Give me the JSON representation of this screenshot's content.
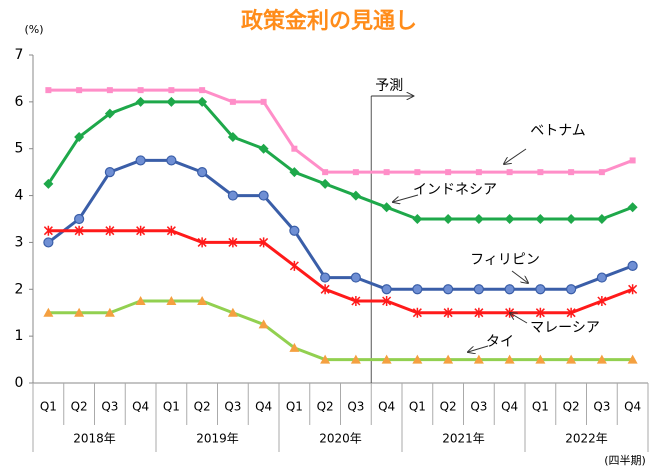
{
  "chart_data": {
    "type": "line",
    "title": "政策金利の見通し",
    "y_label": "(%)",
    "x_label": "(四半期)",
    "annotation": "予測",
    "categories": [
      "Q1",
      "Q2",
      "Q3",
      "Q4",
      "Q1",
      "Q2",
      "Q3",
      "Q4",
      "Q1",
      "Q2",
      "Q3",
      "Q4",
      "Q1",
      "Q2",
      "Q3",
      "Q4",
      "Q1",
      "Q2",
      "Q3",
      "Q4"
    ],
    "year_groups": [
      "2018年",
      "2019年",
      "2020年",
      "2021年",
      "2022年"
    ],
    "ylim": [
      0,
      7
    ],
    "yticks": [
      0,
      1,
      2,
      3,
      4,
      5,
      6,
      7
    ],
    "grid": false,
    "series": [
      {
        "name": "ベトナム",
        "color": "#ff8ec8",
        "marker": "square",
        "marker_color": "#ff8ec8",
        "values": [
          6.25,
          6.25,
          6.25,
          6.25,
          6.25,
          6.25,
          6,
          6,
          5,
          4.5,
          4.5,
          4.5,
          4.5,
          4.5,
          4.5,
          4.5,
          4.5,
          4.5,
          4.5,
          4.75
        ]
      },
      {
        "name": "インドネシア",
        "color": "#1ea84a",
        "marker": "diamond",
        "marker_color": "#1ea84a",
        "values": [
          4.25,
          5.25,
          5.75,
          6,
          6,
          6,
          5.25,
          5,
          4.5,
          4.25,
          4,
          3.75,
          3.5,
          3.5,
          3.5,
          3.5,
          3.5,
          3.5,
          3.5,
          3.75
        ]
      },
      {
        "name": "フィリピン",
        "color": "#3a5ea8",
        "marker": "circle",
        "marker_color": "#6f8fd4",
        "values": [
          3,
          3.5,
          4.5,
          4.75,
          4.75,
          4.5,
          4,
          4,
          3.25,
          2.25,
          2.25,
          2,
          2,
          2,
          2,
          2,
          2,
          2,
          2.25,
          2.5
        ]
      },
      {
        "name": "マレーシア",
        "color": "#ff1a1a",
        "marker": "star",
        "marker_color": "#ff1a1a",
        "values": [
          3.25,
          3.25,
          3.25,
          3.25,
          3.25,
          3,
          3,
          3,
          2.5,
          2,
          1.75,
          1.75,
          1.5,
          1.5,
          1.5,
          1.5,
          1.5,
          1.5,
          1.75,
          2
        ]
      },
      {
        "name": "タイ",
        "color": "#92d050",
        "marker": "triangle",
        "marker_color": "#f4a040",
        "values": [
          1.5,
          1.5,
          1.5,
          1.75,
          1.75,
          1.75,
          1.5,
          1.25,
          0.75,
          0.5,
          0.5,
          0.5,
          0.5,
          0.5,
          0.5,
          0.5,
          0.5,
          0.5,
          0.5,
          0.5
        ]
      }
    ]
  }
}
